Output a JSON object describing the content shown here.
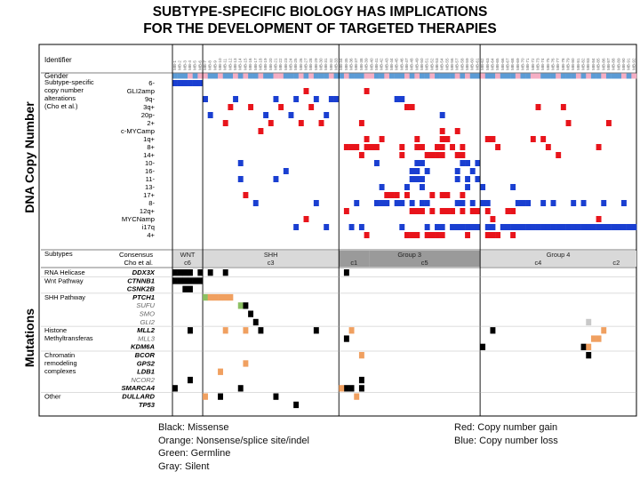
{
  "title": {
    "line1": "SUBTYPE-SPECIFIC BIOLOGY HAS IMPLICATIONS",
    "line2": "FOR THE DEVELOPMENT OF TARGETED THERAPIES"
  },
  "side_labels": {
    "dna": "DNA Copy Number",
    "mutations": "Mutations"
  },
  "legend": {
    "mutation_colors": [
      "Black: Missense",
      "Orange:  Nonsense/splice site/indel",
      "Green:  Germline",
      "Gray: Silent"
    ],
    "copy_number_colors": [
      "Red:  Copy number gain",
      "Blue:  Copy number loss"
    ]
  },
  "colors": {
    "gain": "#e8141b",
    "loss": "#1a3fd1",
    "male": "#5b9bd5",
    "female": "#f4aec4",
    "missense": "#000000",
    "nonsense": "#f0a060",
    "germline": "#8cc063",
    "silent": "#c8c8c8",
    "subtype_bar": "#d9d9d9",
    "subtype_dark": "#9a9a9a"
  },
  "chart_data": {
    "type": "heatmap",
    "n_samples": 92,
    "sample_labels": [
      "MB-1",
      "MB-2",
      "MB-3",
      "MB-4",
      "MB-5",
      "MB-6",
      "MB-7",
      "MB-8",
      "MB-9",
      "MB-10",
      "MB-11",
      "MB-12",
      "MB-13",
      "MB-14",
      "MB-15",
      "MB-16",
      "MB-17",
      "MB-18",
      "MB-19",
      "MB-20",
      "MB-21",
      "MB-22",
      "MB-23",
      "MB-24",
      "MB-25",
      "MB-26",
      "MB-27",
      "MB-28",
      "MB-29",
      "MB-30",
      "MB-31",
      "MB-32",
      "MB-33",
      "MB-34",
      "MB-35",
      "MB-36",
      "MB-37",
      "MB-38",
      "MB-39",
      "MB-40",
      "MB-41",
      "MB-42",
      "MB-43",
      "MB-44",
      "MB-45",
      "MB-46",
      "MB-47",
      "MB-48",
      "MB-49",
      "MB-50",
      "MB-51",
      "MB-52",
      "MB-53",
      "MB-54",
      "MB-55",
      "MB-56",
      "MB-57",
      "MB-58",
      "MB-59",
      "MB-60",
      "MB-61",
      "MB-62",
      "MB-63",
      "MB-64",
      "MB-65",
      "MB-66",
      "MB-67",
      "MB-68",
      "MB-69",
      "MB-70",
      "MB-71",
      "MB-72",
      "MB-73",
      "MB-74",
      "MB-75",
      "MB-76",
      "MB-77",
      "MB-78",
      "MB-79",
      "MB-80",
      "MB-81",
      "MB-82",
      "MB-83",
      "MB-84",
      "MB-85",
      "MB-86",
      "MB-87",
      "MB-88",
      "MB-89",
      "MB-90",
      "MB-91",
      "MB-92"
    ],
    "header_rows": [
      "Identifier",
      "Gender"
    ],
    "cn_section_label": [
      "Subtype-specific",
      "copy number",
      "alterations",
      "(Cho et al.)"
    ],
    "cn_rows": [
      "6-",
      "GLI2amp",
      "9q-",
      "3q+",
      "20p-",
      "2+",
      "c-MYCamp",
      "1q+",
      "8+",
      "14+",
      "10-",
      "16-",
      "11-",
      "13-",
      "17+",
      "8-",
      "12q+",
      "MYCNamp",
      "i17q",
      "4+"
    ],
    "subtype_row_labels": [
      "Subtypes",
      "Consensus",
      "Cho et al."
    ],
    "consensus_groups": [
      {
        "label": "WNT",
        "start": 0,
        "end": 5
      },
      {
        "label": "SHH",
        "start": 6,
        "end": 32
      },
      {
        "label": "Group 3",
        "start": 33,
        "end": 60
      },
      {
        "label": "Group 4",
        "start": 61,
        "end": 91
      }
    ],
    "cho_groups": [
      {
        "label": "c6",
        "start": 0,
        "end": 5
      },
      {
        "label": "c3",
        "start": 6,
        "end": 32
      },
      {
        "label": "c1",
        "start": 33,
        "end": 38
      },
      {
        "label": "c5",
        "start": 39,
        "end": 60
      },
      {
        "label": "c4",
        "start": 61,
        "end": 83
      },
      {
        "label": "c2",
        "start": 84,
        "end": 91
      }
    ],
    "mutation_categories": [
      {
        "category": "RNA Helicase",
        "genes": [
          "DDX3X"
        ]
      },
      {
        "category": "Wnt Pathway",
        "genes": [
          "CTNNB1",
          "CSNK2B"
        ]
      },
      {
        "category": "SHH Pathway",
        "genes": [
          "PTCH1",
          "SUFU",
          "SMO",
          "GLI2"
        ]
      },
      {
        "category": "Histone Methyltransferas",
        "genes": [
          "MLL2",
          "MLL3",
          "KDM6A"
        ]
      },
      {
        "category": "Chromatin remodeling complexes",
        "genes": [
          "BCOR",
          "GPS2",
          "LDB1",
          "NCOR2",
          "SMARCA4"
        ]
      },
      {
        "category": "Other",
        "genes": [
          "DULLARD",
          "TP53"
        ]
      }
    ],
    "mutation_rows": [
      "DDX3X",
      "CTNNB1",
      "CSNK2B",
      "PTCH1",
      "SUFU",
      "SMO",
      "GLI2",
      "MLL2",
      "MLL3",
      "KDM6A",
      "BCOR",
      "GPS2",
      "LDB1",
      "NCOR2",
      "SMARCA4",
      "DULLARD",
      "TP53"
    ],
    "gender": "MMMFMFFMMFMMFMFMMFMMFFMMMFMFMMMFMMFMMMFFMMFMMMFMFMMFMMMMFMFMMFMMFMMMFMMFFMMMFMMMFMFMMFMMMFMF",
    "copy_number_events": [
      {
        "row": "6-",
        "type": "loss",
        "samples": [
          0,
          1,
          2,
          3,
          4,
          5
        ]
      },
      {
        "row": "GLI2amp",
        "type": "gain",
        "samples": [
          26,
          38
        ]
      },
      {
        "row": "9q-",
        "type": "loss",
        "samples": [
          6,
          12,
          20,
          24,
          28,
          31,
          32,
          44,
          45
        ]
      },
      {
        "row": "3q+",
        "type": "gain",
        "samples": [
          11,
          15,
          21,
          27,
          46,
          47,
          72,
          77
        ]
      },
      {
        "row": "20p-",
        "type": "loss",
        "samples": [
          7,
          18,
          23,
          30,
          53
        ]
      },
      {
        "row": "2+",
        "type": "gain",
        "samples": [
          10,
          19,
          25,
          29,
          37,
          78,
          86
        ]
      },
      {
        "row": "c-MYCamp",
        "type": "gain",
        "samples": [
          17,
          53,
          56
        ]
      },
      {
        "row": "1q+",
        "type": "gain",
        "samples": [
          38,
          41,
          48,
          53,
          54,
          62,
          63,
          71,
          73
        ]
      },
      {
        "row": "8+",
        "type": "gain",
        "samples": [
          34,
          35,
          36,
          38,
          39,
          40,
          45,
          48,
          49,
          52,
          53,
          55,
          57,
          64,
          74,
          84
        ]
      },
      {
        "row": "14+",
        "type": "gain",
        "samples": [
          37,
          45,
          50,
          51,
          52,
          53,
          56,
          57,
          76
        ]
      },
      {
        "row": "10-",
        "type": "loss",
        "samples": [
          13,
          40,
          48,
          49,
          57,
          58,
          60
        ]
      },
      {
        "row": "16-",
        "type": "loss",
        "samples": [
          22,
          47,
          48,
          50,
          56,
          59
        ]
      },
      {
        "row": "11-",
        "type": "loss",
        "samples": [
          13,
          20,
          47,
          48,
          49,
          56,
          58,
          60
        ]
      },
      {
        "row": "13-",
        "type": "loss",
        "samples": [
          41,
          46,
          49,
          58,
          61,
          67
        ]
      },
      {
        "row": "17+",
        "type": "gain",
        "samples": [
          14,
          42,
          43,
          44,
          46,
          51,
          53,
          54,
          57
        ]
      },
      {
        "row": "8-",
        "type": "loss",
        "samples": [
          16,
          28,
          36,
          40,
          41,
          42,
          44,
          45,
          47,
          49,
          50,
          56,
          57,
          59,
          61,
          62,
          68,
          69,
          70,
          73,
          75,
          79,
          81,
          85,
          89
        ]
      },
      {
        "row": "12q+",
        "type": "gain",
        "samples": [
          34,
          47,
          48,
          49,
          51,
          53,
          54,
          55,
          57,
          59,
          60,
          62,
          66,
          67
        ]
      },
      {
        "row": "MYCNamp",
        "type": "gain",
        "samples": [
          26,
          63,
          84
        ]
      },
      {
        "row": "i17q",
        "type": "loss",
        "samples": [
          24,
          30,
          35,
          37,
          45,
          50,
          52,
          53,
          55,
          56,
          57,
          58,
          59,
          60,
          62,
          63,
          65,
          66,
          67,
          68,
          69,
          70,
          71,
          72,
          73,
          74,
          75,
          76,
          77,
          78,
          79,
          80,
          81,
          82,
          83,
          84,
          85,
          86,
          87,
          88,
          89,
          90,
          91
        ]
      },
      {
        "row": "4+",
        "type": "gain",
        "samples": [
          38,
          46,
          47,
          48,
          50,
          51,
          52,
          53,
          58,
          62,
          63,
          64,
          67
        ]
      }
    ],
    "mutation_events": [
      {
        "row": "DDX3X",
        "type": "missense",
        "samples": [
          0,
          1,
          2,
          3,
          5,
          7,
          10,
          34
        ]
      },
      {
        "row": "CTNNB1",
        "type": "missense",
        "samples": [
          0,
          1,
          2,
          3,
          4,
          5
        ]
      },
      {
        "row": "CSNK2B",
        "type": "missense",
        "samples": [
          2,
          3
        ]
      },
      {
        "row": "PTCH1",
        "type": "germline",
        "samples": [
          6
        ]
      },
      {
        "row": "PTCH1",
        "type": "nonsense",
        "samples": [
          7,
          8,
          9,
          10,
          11
        ]
      },
      {
        "row": "SUFU",
        "type": "germline",
        "samples": [
          13
        ]
      },
      {
        "row": "SUFU",
        "type": "missense",
        "samples": [
          14
        ]
      },
      {
        "row": "SMO",
        "type": "missense",
        "samples": [
          15
        ]
      },
      {
        "row": "GLI2",
        "type": "missense",
        "samples": [
          16
        ]
      },
      {
        "row": "GLI2",
        "type": "silent",
        "samples": [
          82
        ]
      },
      {
        "row": "MLL2",
        "type": "missense",
        "samples": [
          3,
          17,
          28,
          63
        ]
      },
      {
        "row": "MLL2",
        "type": "nonsense",
        "samples": [
          10,
          14,
          35,
          85
        ]
      },
      {
        "row": "MLL3",
        "type": "missense",
        "samples": [
          34
        ]
      },
      {
        "row": "MLL3",
        "type": "nonsense",
        "samples": [
          83,
          84
        ]
      },
      {
        "row": "KDM6A",
        "type": "missense",
        "samples": [
          61,
          81
        ]
      },
      {
        "row": "KDM6A",
        "type": "nonsense",
        "samples": [
          82
        ]
      },
      {
        "row": "BCOR",
        "type": "missense",
        "samples": [
          82
        ]
      },
      {
        "row": "BCOR",
        "type": "nonsense",
        "samples": [
          37
        ]
      },
      {
        "row": "GPS2",
        "type": "nonsense",
        "samples": [
          14
        ]
      },
      {
        "row": "LDB1",
        "type": "nonsense",
        "samples": [
          9
        ]
      },
      {
        "row": "NCOR2",
        "type": "missense",
        "samples": [
          3,
          37
        ]
      },
      {
        "row": "SMARCA4",
        "type": "missense",
        "samples": [
          0,
          13,
          34,
          35,
          37
        ]
      },
      {
        "row": "SMARCA4",
        "type": "nonsense",
        "samples": [
          33
        ]
      },
      {
        "row": "DULLARD",
        "type": "missense",
        "samples": [
          9,
          20
        ]
      },
      {
        "row": "DULLARD",
        "type": "nonsense",
        "samples": [
          6,
          36
        ]
      },
      {
        "row": "TP53",
        "type": "missense",
        "samples": [
          24
        ]
      }
    ]
  }
}
